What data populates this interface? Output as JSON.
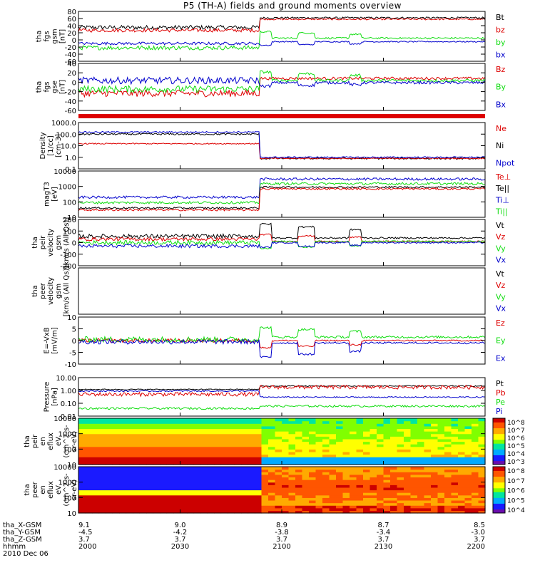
{
  "title": "P5 (TH-A) fields and ground moments overview",
  "date_label": "2010 Dec 06",
  "colors": {
    "black": "#000000",
    "red": "#dd0000",
    "green": "#11dd11",
    "blue": "#0000cc"
  },
  "chart_data": [
    {
      "name": "fgs-gsm",
      "type": "line",
      "ylabel": [
        "tha",
        "fgs",
        "gsm",
        "[nT]"
      ],
      "ylim": [
        -60,
        80
      ],
      "yticks": [
        "80",
        "60",
        "40",
        "20",
        "0",
        "-20",
        "-40",
        "-60"
      ],
      "legend": [
        {
          "label": "Bt",
          "color": "black"
        },
        {
          "label": "bz",
          "color": "red"
        },
        {
          "label": "by",
          "color": "green"
        },
        {
          "label": "bx",
          "color": "blue"
        }
      ],
      "series": [
        {
          "name": "Bt",
          "color": "black",
          "pre": 35,
          "post": 62,
          "noise": 6,
          "spike": 0
        },
        {
          "name": "bz",
          "color": "red",
          "pre": 27,
          "post": 58,
          "noise": 5,
          "spike": 0
        },
        {
          "name": "by",
          "color": "green",
          "pre": -22,
          "post": 5,
          "noise": 6,
          "spike": 18
        },
        {
          "name": "bx",
          "color": "blue",
          "pre": -10,
          "post": -5,
          "noise": 4,
          "spike": -10
        }
      ]
    },
    {
      "name": "fgs-gse",
      "type": "line",
      "ylabel": [
        "tha",
        "fgs",
        "gse",
        "[nT]"
      ],
      "ylim": [
        -70,
        40
      ],
      "yticks": [
        "40",
        "20",
        "0",
        "-20",
        "-40",
        "-60"
      ],
      "legend": [
        {
          "label": "Bz",
          "color": "red"
        },
        {
          "label": "By",
          "color": "green"
        },
        {
          "label": "Bx",
          "color": "blue"
        }
      ],
      "series": [
        {
          "name": "Bz",
          "color": "red",
          "pre": -30,
          "post": 5,
          "noise": 8,
          "spike": 0
        },
        {
          "name": "By",
          "color": "green",
          "pre": -20,
          "post": 0,
          "noise": 8,
          "spike": 20
        },
        {
          "name": "Bx",
          "color": "blue",
          "pre": 0,
          "post": -5,
          "noise": 8,
          "spike": -8
        }
      ]
    },
    {
      "name": "density",
      "type": "line",
      "scale": "log",
      "ylabel": [
        "Density",
        "[1/cc]",
        "[cm-3]"
      ],
      "ylim": [
        0.1,
        1000
      ],
      "yticks": [
        "1000.0",
        "100.0",
        "10.0",
        "1.0",
        "0.1"
      ],
      "legend": [
        {
          "label": "Ne",
          "color": "red"
        },
        {
          "label": "Ni",
          "color": "black"
        },
        {
          "label": "Npot",
          "color": "blue"
        }
      ],
      "series": [
        {
          "name": "Ni",
          "color": "black",
          "pre": 100,
          "post": 0.8,
          "noise": 0.08,
          "spike": 0
        },
        {
          "name": "Ne",
          "color": "red",
          "pre": 15,
          "post": 0.8,
          "noise": 0.05,
          "spike": 0
        },
        {
          "name": "Npot",
          "color": "blue",
          "pre": 150,
          "post": 1.0,
          "noise": 0.06,
          "spike": 0
        }
      ]
    },
    {
      "name": "temperature",
      "type": "line",
      "scale": "log",
      "ylabel": [
        "magT3",
        "[eV]"
      ],
      "ylim": [
        10,
        10000
      ],
      "yticks": [
        "10000",
        "1000",
        "100",
        "10"
      ],
      "legend": [
        {
          "label": "Te⊥",
          "color": "red"
        },
        {
          "label": "Te||",
          "color": "black"
        },
        {
          "label": "Ti⊥",
          "color": "blue"
        },
        {
          "label": "Ti||",
          "color": "green"
        }
      ],
      "series": [
        {
          "name": "Ti⊥",
          "color": "blue",
          "pre": 200,
          "post": 3000,
          "noise": 0.08,
          "spike": 0
        },
        {
          "name": "Ti||",
          "color": "green",
          "pre": 90,
          "post": 1500,
          "noise": 0.08,
          "spike": 0
        },
        {
          "name": "Te||",
          "color": "black",
          "pre": 40,
          "post": 900,
          "noise": 0.06,
          "spike": 0
        },
        {
          "name": "Te⊥",
          "color": "red",
          "pre": 30,
          "post": 700,
          "noise": 0.06,
          "spike": 0
        }
      ]
    },
    {
      "name": "peir-velocity",
      "type": "line",
      "ylabel": [
        "tha",
        "peir",
        "velocity",
        "gsm",
        "[km/s (All Qs)]"
      ],
      "ylim": [
        -200,
        200
      ],
      "yticks": [
        "200",
        "100",
        "0",
        "-100",
        "-200"
      ],
      "legend": [
        {
          "label": "Vt",
          "color": "black"
        },
        {
          "label": "Vz",
          "color": "red"
        },
        {
          "label": "Vy",
          "color": "green"
        },
        {
          "label": "Vx",
          "color": "blue"
        }
      ],
      "series": [
        {
          "name": "Vt",
          "color": "black",
          "pre": 55,
          "post": 40,
          "noise": 18,
          "spike": 120
        },
        {
          "name": "Vz",
          "color": "red",
          "pre": 30,
          "post": 10,
          "noise": 15,
          "spike": 60
        },
        {
          "name": "Vy",
          "color": "green",
          "pre": 0,
          "post": 10,
          "noise": 18,
          "spike": -60
        },
        {
          "name": "Vx",
          "color": "blue",
          "pre": -30,
          "post": 0,
          "noise": 15,
          "spike": -40
        }
      ]
    },
    {
      "name": "peer-velocity",
      "type": "line",
      "ylabel": [
        "tha",
        "peer",
        "velocity",
        "gsm",
        "[km/s (All Qs)]"
      ],
      "ylim": [
        -200,
        200
      ],
      "yticks": [],
      "legend": [
        {
          "label": "Vt",
          "color": "black"
        },
        {
          "label": "Vz",
          "color": "red"
        },
        {
          "label": "Vy",
          "color": "green"
        },
        {
          "label": "Vx",
          "color": "blue"
        }
      ],
      "series": []
    },
    {
      "name": "efield",
      "type": "line",
      "ylabel": [
        "E=-VxB",
        "[mV/m]"
      ],
      "ylim": [
        -10,
        10
      ],
      "yticks": [
        "10",
        "5",
        "0",
        "-5",
        "-10"
      ],
      "legend": [
        {
          "label": "Ez",
          "color": "red"
        },
        {
          "label": "Ey",
          "color": "green"
        },
        {
          "label": "Ex",
          "color": "blue"
        }
      ],
      "series": [
        {
          "name": "Ez",
          "color": "red",
          "pre": 0,
          "post": 0,
          "noise": 0.8,
          "spike": -3
        },
        {
          "name": "Ey",
          "color": "green",
          "pre": 0.5,
          "post": 1.5,
          "noise": 1.2,
          "spike": 4
        },
        {
          "name": "Ex",
          "color": "blue",
          "pre": -0.5,
          "post": -1,
          "noise": 1.0,
          "spike": -6
        }
      ]
    },
    {
      "name": "pressure",
      "type": "line",
      "scale": "log",
      "ylabel": [
        "Pressure",
        "[nPa]"
      ],
      "ylim": [
        0.01,
        10
      ],
      "yticks": [
        "10.00",
        "1.00",
        "0.10",
        "0.01"
      ],
      "legend": [
        {
          "label": "Pt",
          "color": "black"
        },
        {
          "label": "Pb",
          "color": "red"
        },
        {
          "label": "Pe",
          "color": "green"
        },
        {
          "label": "Pi",
          "color": "blue"
        }
      ],
      "series": [
        {
          "name": "Pt",
          "color": "black",
          "pre": 1.2,
          "post": 2.2,
          "noise": 0.04,
          "spike": 0
        },
        {
          "name": "Pb",
          "color": "red",
          "pre": 0.5,
          "post": 1.8,
          "noise": 0.15,
          "spike": 0
        },
        {
          "name": "Pi",
          "color": "blue",
          "pre": 0.9,
          "post": 0.3,
          "noise": 0.05,
          "spike": 0
        },
        {
          "name": "Pe",
          "color": "green",
          "pre": 0.04,
          "post": 0.06,
          "noise": 0.08,
          "spike": 0
        }
      ]
    },
    {
      "name": "peir-eflux",
      "type": "heatmap",
      "scale": "log",
      "ylabel": [
        "tha",
        "peir",
        "en",
        "eflux",
        "eV",
        "(cm^2-s-",
        "sr-eV)"
      ],
      "ylim": [
        10,
        20000
      ],
      "yticks": [
        "10000",
        "1000",
        "100",
        "10"
      ],
      "colorbar": {
        "ticks": [
          "10^8",
          "10^7",
          "10^6",
          "10^5",
          "10^4",
          "10^3"
        ]
      }
    },
    {
      "name": "peer-eflux",
      "type": "heatmap",
      "scale": "log",
      "ylabel": [
        "tha",
        "peer",
        "en",
        "eflux",
        "eV",
        "(cm^2-s-",
        "sr-eV)"
      ],
      "ylim": [
        10,
        20000
      ],
      "yticks": [
        "10000",
        "1000",
        "100",
        "10"
      ],
      "colorbar": {
        "ticks": [
          "10^8",
          "10^7",
          "10^6",
          "10^5",
          "10^4"
        ]
      }
    }
  ],
  "x_axis": {
    "tick_labels": [
      {
        "x": "9.1",
        "y": "-4.5",
        "z": "3.7",
        "time": "2000"
      },
      {
        "x": "9.0",
        "y": "-4.2",
        "z": "3.7",
        "time": "2030"
      },
      {
        "x": "8.9",
        "y": "-3.8",
        "z": "3.7",
        "time": "2100"
      },
      {
        "x": "8.7",
        "y": "-3.4",
        "z": "3.7",
        "time": "2130"
      },
      {
        "x": "8.5",
        "y": "-3.0",
        "z": "3.7",
        "time": "2200"
      }
    ],
    "row_labels": [
      "tha_X-GSM",
      "tha_Y-GSM",
      "tha_Z-GSM",
      "hhmm"
    ]
  }
}
